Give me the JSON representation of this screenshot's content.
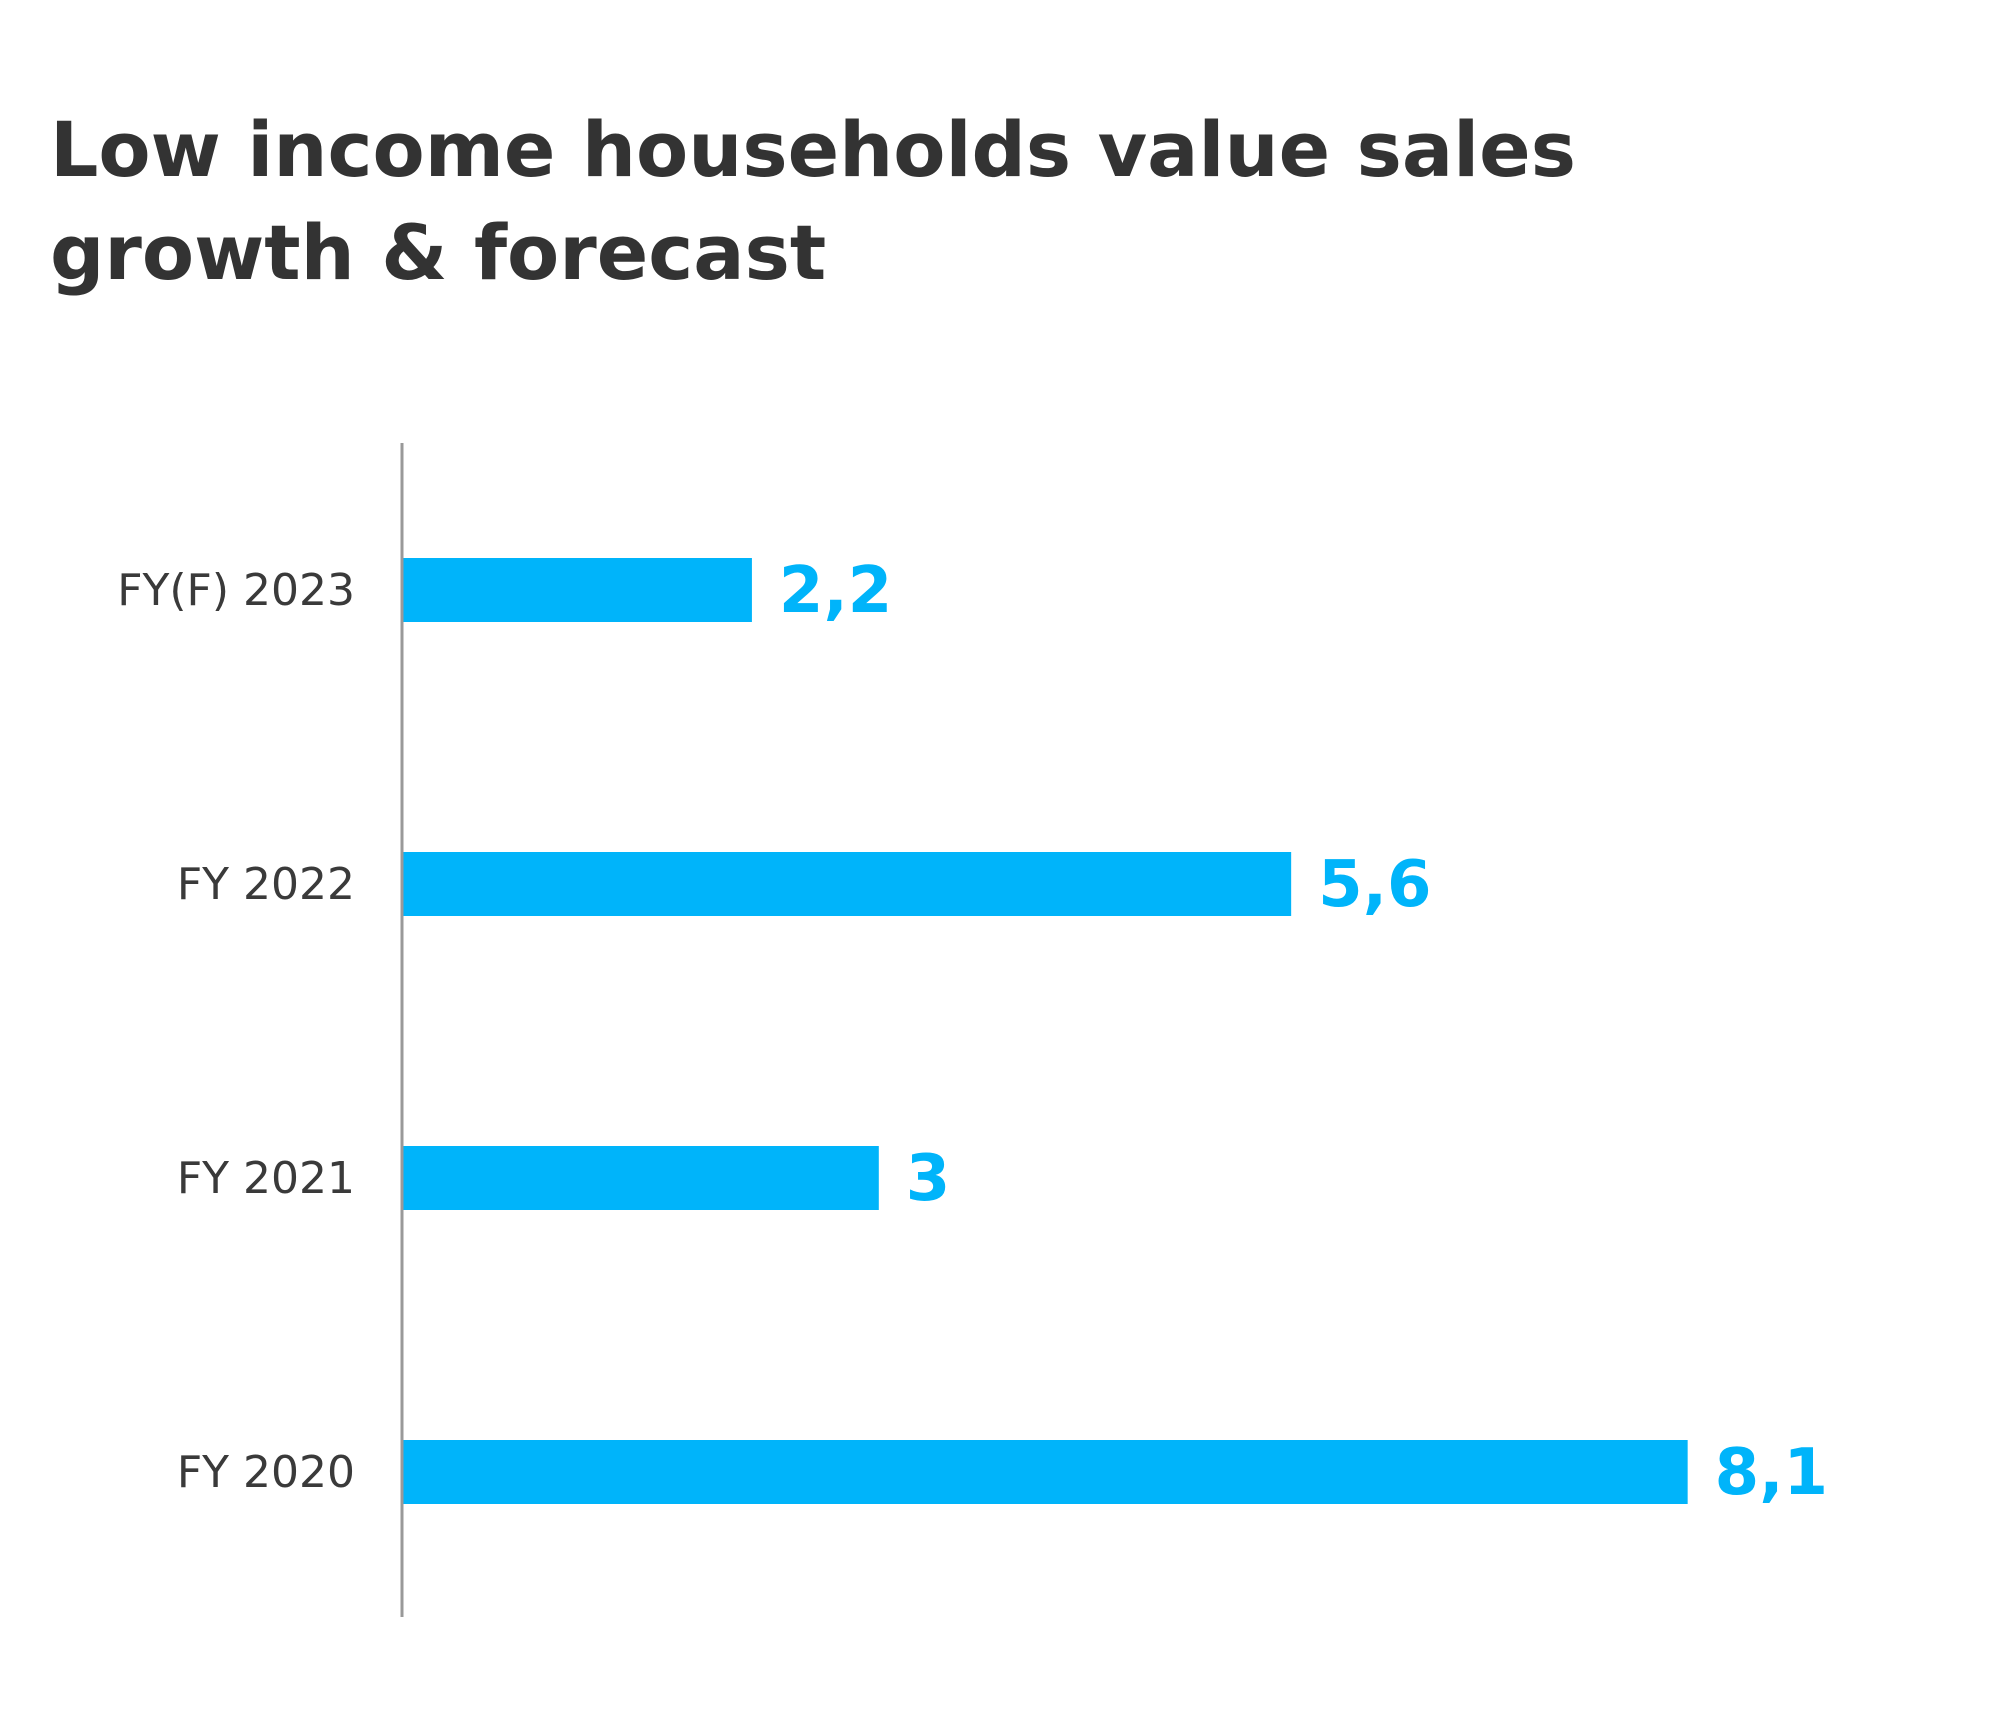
{
  "chart_data": {
    "type": "bar",
    "orientation": "horizontal",
    "title": "Low income households value sales growth & forecast",
    "xlabel": "",
    "ylabel": "",
    "categories": [
      "FY(F) 2023",
      "FY 2022",
      "FY 2021",
      "FY 2020"
    ],
    "values": [
      2.2,
      5.6,
      3,
      8.1
    ],
    "value_labels": [
      "2,2",
      "5,6",
      "3",
      "8,1"
    ],
    "xlim": [
      0,
      10
    ],
    "grid": false,
    "legend": "none",
    "bar_color": "#00B4FA",
    "value_label_color": "#00B4FA",
    "axis_color": "#999999"
  }
}
